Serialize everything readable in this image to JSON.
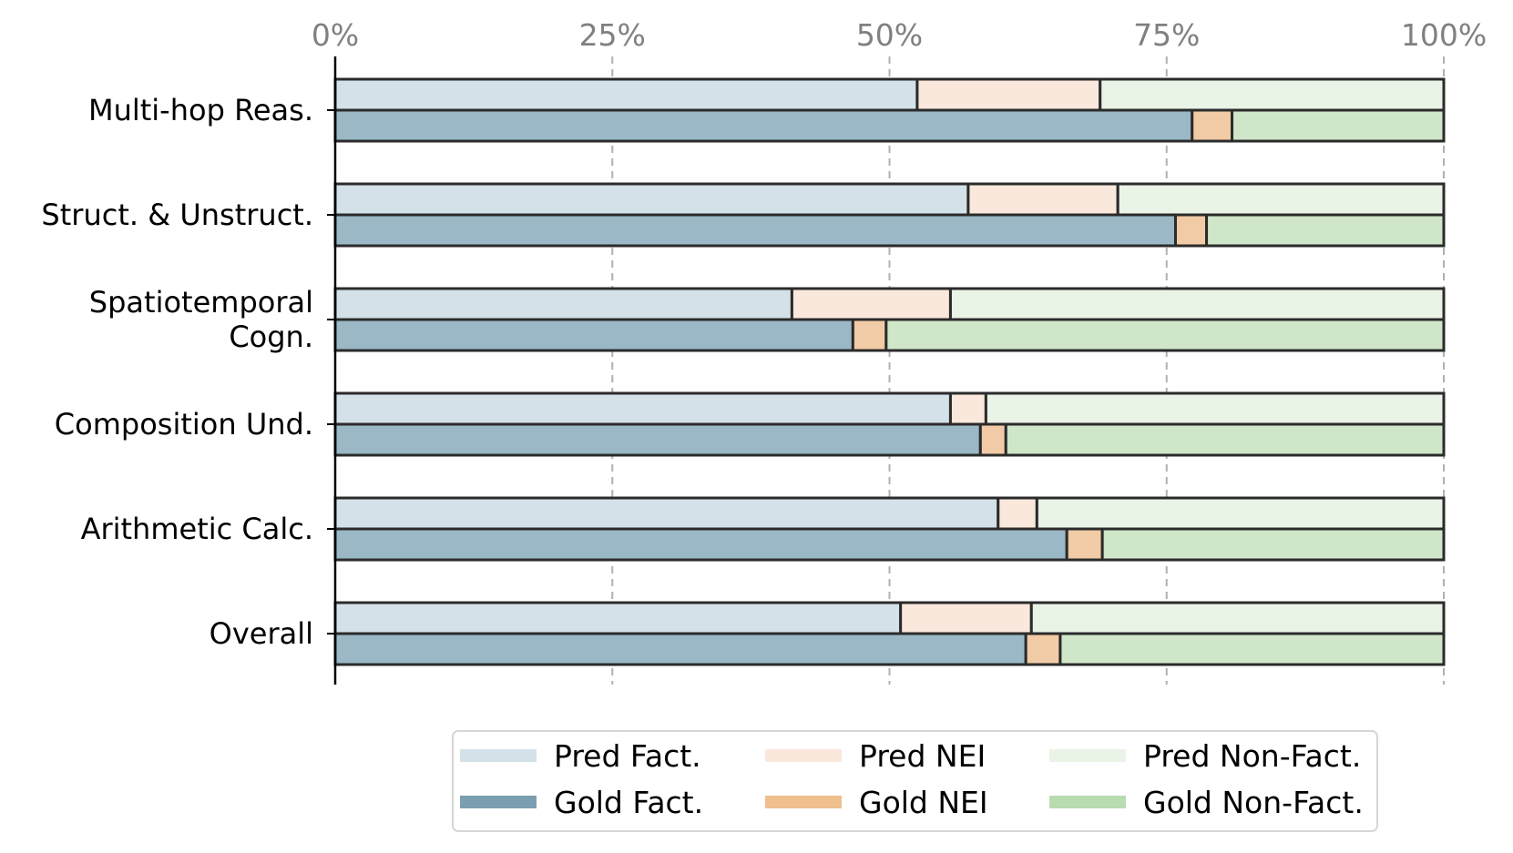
{
  "chart_data": {
    "type": "bar",
    "orientation": "horizontal",
    "stacked": true,
    "normalized": true,
    "categories": [
      [
        "Multi-hop Reas."
      ],
      [
        "Struct. & Unstruct."
      ],
      [
        "Spatiotemporal",
        "Cogn."
      ],
      [
        "Composition Und."
      ],
      [
        "Arithmetic Calc."
      ],
      [
        "Overall"
      ]
    ],
    "x_ticks": [
      "0%",
      "25%",
      "50%",
      "75%",
      "100%"
    ],
    "xlim": [
      0,
      100
    ],
    "grid": "vertical dashed",
    "legend_position": "bottom-right",
    "legend": [
      {
        "label": "Pred Fact.",
        "color": "#d4e1e8"
      },
      {
        "label": "Gold Fact.",
        "color": "#7b9fb0"
      },
      {
        "label": "Pred NEI",
        "color": "#fae8dc"
      },
      {
        "label": "Gold NEI",
        "color": "#efbf8e"
      },
      {
        "label": "Pred Non-Fact.",
        "color": "#e9f3e6"
      },
      {
        "label": "Gold Non-Fact.",
        "color": "#b8dbb0"
      }
    ],
    "rows": [
      {
        "pred": {
          "fact": 52.5,
          "nei": 16.5,
          "nonfact": 31.0
        },
        "gold": {
          "fact": 77.3,
          "nei": 3.6,
          "nonfact": 19.1
        }
      },
      {
        "pred": {
          "fact": 57.1,
          "nei": 13.5,
          "nonfact": 29.4
        },
        "gold": {
          "fact": 75.8,
          "nei": 2.8,
          "nonfact": 21.4
        }
      },
      {
        "pred": {
          "fact": 41.2,
          "nei": 14.3,
          "nonfact": 44.5
        },
        "gold": {
          "fact": 46.7,
          "nei": 3.0,
          "nonfact": 50.3
        }
      },
      {
        "pred": {
          "fact": 55.5,
          "nei": 3.2,
          "nonfact": 41.3
        },
        "gold": {
          "fact": 58.2,
          "nei": 2.3,
          "nonfact": 39.5
        }
      },
      {
        "pred": {
          "fact": 59.8,
          "nei": 3.5,
          "nonfact": 36.7
        },
        "gold": {
          "fact": 66.0,
          "nei": 3.2,
          "nonfact": 30.8
        }
      },
      {
        "pred": {
          "fact": 51.0,
          "nei": 11.8,
          "nonfact": 37.2
        },
        "gold": {
          "fact": 62.3,
          "nei": 3.1,
          "nonfact": 34.6
        }
      }
    ],
    "colors": {
      "pred_fact": "#d4e1e8",
      "pred_nei": "#fae8dc",
      "pred_nonfact": "#e9f3e6",
      "gold_fact": "#9ab8c5",
      "gold_nei": "#f1cba6",
      "gold_nonfact": "#d0e6c9",
      "edge": "#2b2b2b",
      "grid": "#b0b0b0"
    }
  }
}
